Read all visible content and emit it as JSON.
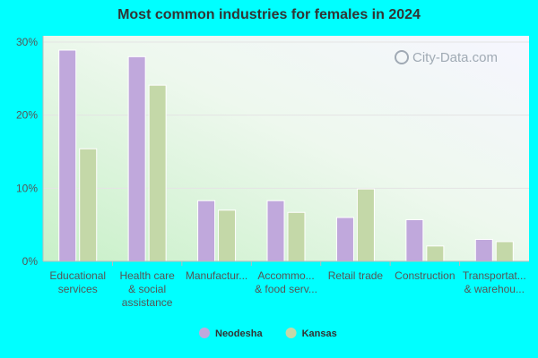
{
  "chart_data": {
    "type": "bar",
    "title": "Most common industries for females in 2024",
    "categories": [
      [
        "Educational",
        "services"
      ],
      [
        "Health care",
        "& social",
        "assistance"
      ],
      [
        "Manufactur..."
      ],
      [
        "Accommo...",
        "& food serv..."
      ],
      [
        "Retail trade"
      ],
      [
        "Construction"
      ],
      [
        "Transportat...",
        "& warehou..."
      ]
    ],
    "series": [
      {
        "name": "Neodesha",
        "color": "#c0a8dc",
        "values": [
          28.9,
          28.0,
          8.3,
          8.3,
          6.0,
          5.7,
          3.0
        ]
      },
      {
        "name": "Kansas",
        "color": "#c4d8a8",
        "values": [
          15.4,
          24.1,
          7.0,
          6.7,
          9.9,
          2.1,
          2.7
        ]
      }
    ],
    "yticks": [
      "0%",
      "10%",
      "20%",
      "30%"
    ],
    "ylim": [
      0,
      30
    ],
    "grid": true,
    "legend_position": "bottom-center"
  },
  "watermark": "City-Data.com"
}
